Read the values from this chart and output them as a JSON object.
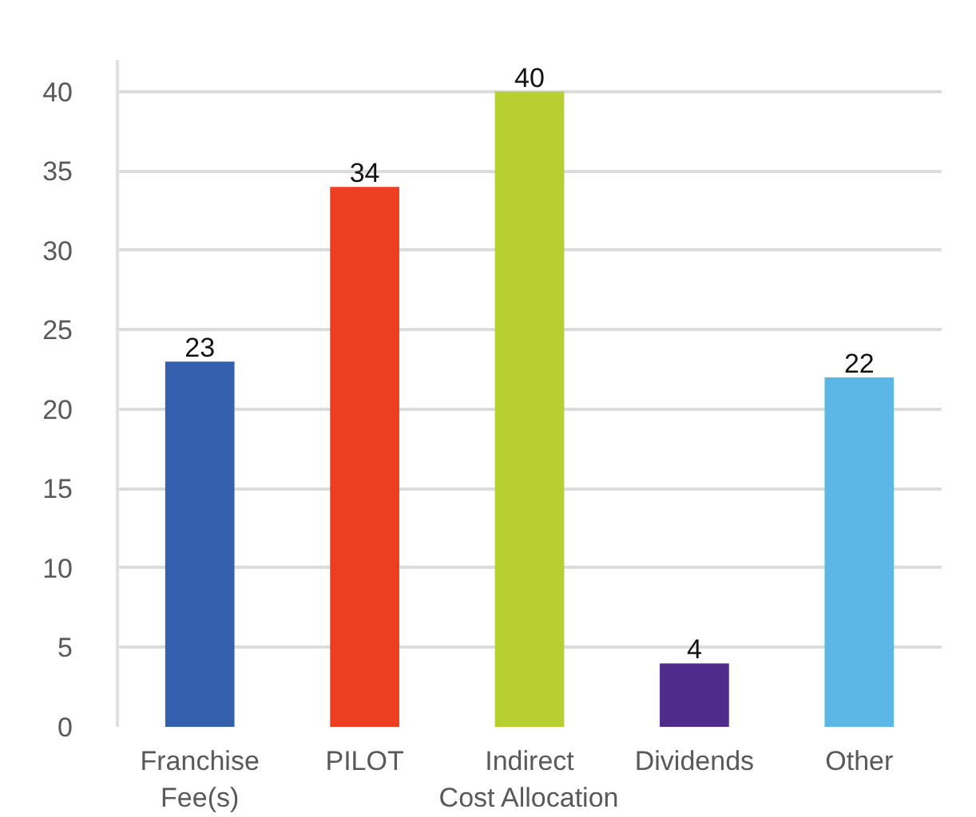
{
  "chart_data": {
    "type": "bar",
    "categories": [
      "Franchise\nFee(s)",
      "PILOT",
      "Indirect\nCost Allocation",
      "Dividends",
      "Other"
    ],
    "values": [
      23,
      34,
      40,
      4,
      22
    ],
    "colors": [
      "#3460ae",
      "#ee3e22",
      "#b8cf32",
      "#4f2b8c",
      "#5bb8e6"
    ],
    "ylim": [
      0,
      42
    ],
    "yticks": [
      0,
      5,
      10,
      15,
      20,
      25,
      30,
      35,
      40
    ],
    "grid": "y",
    "data_labels": true
  }
}
